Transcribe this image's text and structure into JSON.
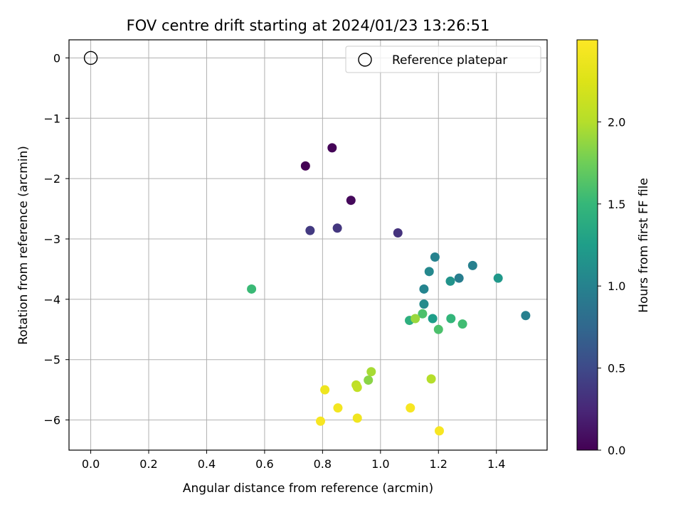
{
  "chart_data": {
    "type": "scatter",
    "title": "FOV centre drift starting at 2024/01/23 13:26:51",
    "xlabel": "Angular distance from reference (arcmin)",
    "ylabel": "Rotation from reference (arcmin)",
    "xlim": [
      -0.075,
      1.575
    ],
    "ylim": [
      -6.5,
      0.3
    ],
    "xticks": [
      "0.0",
      "0.2",
      "0.4",
      "0.6",
      "0.8",
      "1.0",
      "1.2",
      "1.4"
    ],
    "yticks": [
      "0",
      "−1",
      "−2",
      "−3",
      "−4",
      "−5",
      "−6"
    ],
    "grid": true,
    "legend": {
      "position": "top-right",
      "entries": [
        "Reference platepar"
      ]
    },
    "reference_point": {
      "x": 0.0,
      "y": 0.0,
      "marker": "open-circle"
    },
    "colorbar": {
      "label": "Hours from first FF file",
      "colormap": "viridis",
      "range": [
        0.0,
        2.5
      ],
      "ticks": [
        "0.0",
        "0.5",
        "1.0",
        "1.5",
        "2.0"
      ]
    },
    "points": [
      {
        "x": 0.741,
        "y": -1.79,
        "c": 0.0
      },
      {
        "x": 0.833,
        "y": -1.49,
        "c": 0.02
      },
      {
        "x": 0.898,
        "y": -2.36,
        "c": 0.05
      },
      {
        "x": 0.757,
        "y": -2.86,
        "c": 0.38
      },
      {
        "x": 0.851,
        "y": -2.82,
        "c": 0.36
      },
      {
        "x": 1.06,
        "y": -2.9,
        "c": 0.33
      },
      {
        "x": 1.188,
        "y": -3.3,
        "c": 1.0
      },
      {
        "x": 1.318,
        "y": -3.44,
        "c": 0.98
      },
      {
        "x": 1.168,
        "y": -3.54,
        "c": 1.05
      },
      {
        "x": 1.271,
        "y": -3.65,
        "c": 0.95
      },
      {
        "x": 1.241,
        "y": -3.7,
        "c": 1.15
      },
      {
        "x": 1.406,
        "y": -3.65,
        "c": 1.2
      },
      {
        "x": 1.15,
        "y": -3.83,
        "c": 1.02
      },
      {
        "x": 1.15,
        "y": -4.08,
        "c": 1.08
      },
      {
        "x": 1.501,
        "y": -4.27,
        "c": 0.98
      },
      {
        "x": 0.555,
        "y": -3.83,
        "c": 1.52
      },
      {
        "x": 1.145,
        "y": -4.24,
        "c": 1.6
      },
      {
        "x": 1.18,
        "y": -4.32,
        "c": 1.25
      },
      {
        "x": 1.1,
        "y": -4.35,
        "c": 1.42
      },
      {
        "x": 1.243,
        "y": -4.32,
        "c": 1.48
      },
      {
        "x": 1.12,
        "y": -4.32,
        "c": 1.9
      },
      {
        "x": 1.2,
        "y": -4.5,
        "c": 1.6
      },
      {
        "x": 1.283,
        "y": -4.41,
        "c": 1.55
      },
      {
        "x": 0.968,
        "y": -5.2,
        "c": 1.95
      },
      {
        "x": 0.958,
        "y": -5.34,
        "c": 1.85
      },
      {
        "x": 0.916,
        "y": -5.42,
        "c": 2.05
      },
      {
        "x": 0.92,
        "y": -5.46,
        "c": 2.08
      },
      {
        "x": 1.175,
        "y": -5.32,
        "c": 2.0
      },
      {
        "x": 0.808,
        "y": -5.5,
        "c": 2.38
      },
      {
        "x": 0.853,
        "y": -5.8,
        "c": 2.42
      },
      {
        "x": 1.103,
        "y": -5.8,
        "c": 2.45
      },
      {
        "x": 0.793,
        "y": -6.02,
        "c": 2.45
      },
      {
        "x": 0.92,
        "y": -5.97,
        "c": 2.4
      },
      {
        "x": 1.203,
        "y": -6.18,
        "c": 2.45
      }
    ]
  }
}
